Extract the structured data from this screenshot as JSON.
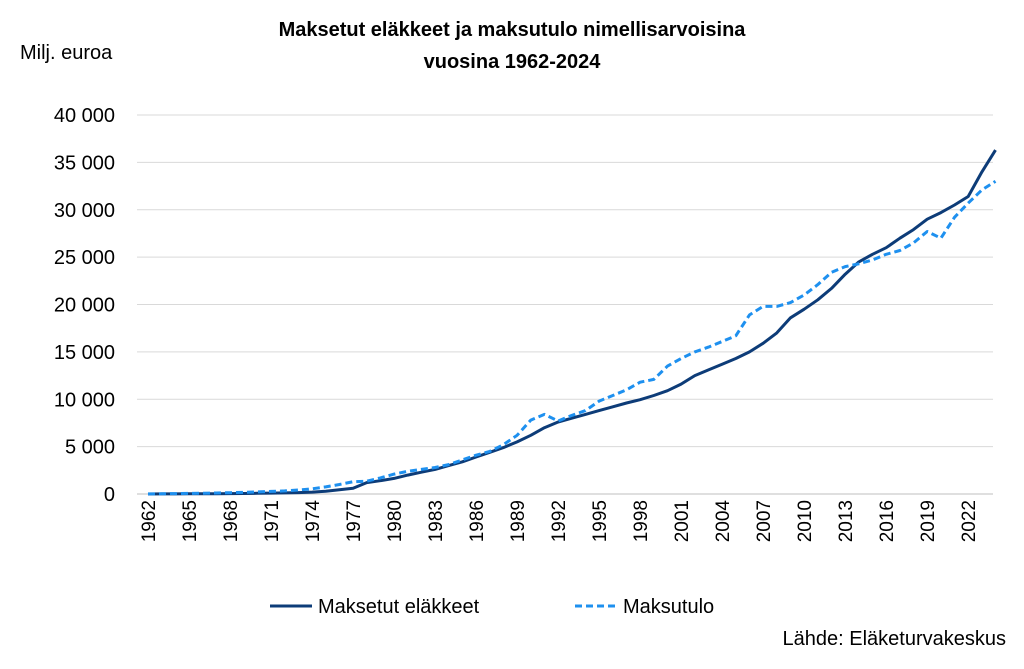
{
  "title_line1": "Maksetut eläkkeet ja maksutulo nimellisarvoisina",
  "title_line2": "vuosina 1962-2024",
  "unit_label": "Milj. euroa",
  "source": "Lähde: Eläketurvakeskus",
  "chart_data": {
    "type": "line",
    "title": "Maksetut eläkkeet ja maksutulo nimellisarvoisina vuosina 1962-2024",
    "ylabel": "Milj. euroa",
    "xlabel": "",
    "ylim": [
      0,
      40000
    ],
    "xlim": [
      1962,
      2024
    ],
    "y_ticks": [
      "0",
      "5 000",
      "10 000",
      "15 000",
      "20 000",
      "25 000",
      "30 000",
      "35 000",
      "40 000"
    ],
    "y_tick_values": [
      0,
      5000,
      10000,
      15000,
      20000,
      25000,
      30000,
      35000,
      40000
    ],
    "x_ticks": [
      "1962",
      "1965",
      "1968",
      "1971",
      "1974",
      "1977",
      "1980",
      "1983",
      "1986",
      "1989",
      "1992",
      "1995",
      "1998",
      "2001",
      "2004",
      "2007",
      "2010",
      "2013",
      "2016",
      "2019",
      "2022"
    ],
    "grid": true,
    "legend_position": "bottom",
    "x": [
      1962,
      1963,
      1964,
      1965,
      1966,
      1967,
      1968,
      1969,
      1970,
      1971,
      1972,
      1973,
      1974,
      1975,
      1976,
      1977,
      1978,
      1979,
      1980,
      1981,
      1982,
      1983,
      1984,
      1985,
      1986,
      1987,
      1988,
      1989,
      1990,
      1991,
      1992,
      1993,
      1994,
      1995,
      1996,
      1997,
      1998,
      1999,
      2000,
      2001,
      2002,
      2003,
      2004,
      2005,
      2006,
      2007,
      2008,
      2009,
      2010,
      2011,
      2012,
      2013,
      2014,
      2015,
      2016,
      2017,
      2018,
      2019,
      2020,
      2021,
      2022,
      2023,
      2024
    ],
    "series": [
      {
        "name": "Maksetut eläkkeet",
        "color": "#0d3c78",
        "style": "solid",
        "values": [
          5,
          10,
          15,
          20,
          25,
          35,
          45,
          55,
          70,
          90,
          120,
          150,
          200,
          300,
          450,
          600,
          1200,
          1400,
          1650,
          2000,
          2300,
          2600,
          3000,
          3400,
          3900,
          4400,
          4900,
          5500,
          6200,
          7000,
          7600,
          8000,
          8400,
          8800,
          9200,
          9600,
          9950,
          10400,
          10900,
          11600,
          12500,
          13100,
          13700,
          14300,
          15000,
          15900,
          17000,
          18600,
          19500,
          20500,
          21700,
          23200,
          24500,
          25300,
          26000,
          27000,
          27900,
          29000,
          29700,
          30500,
          31400,
          34000,
          36300
        ]
      },
      {
        "name": "Maksutulo",
        "color": "#1e90ef",
        "style": "dashed",
        "values": [
          10,
          20,
          40,
          60,
          80,
          110,
          140,
          180,
          220,
          270,
          330,
          420,
          550,
          750,
          1000,
          1300,
          1350,
          1700,
          2100,
          2400,
          2600,
          2800,
          3100,
          3600,
          4100,
          4500,
          5200,
          6200,
          7800,
          8400,
          7700,
          8300,
          8800,
          9800,
          10400,
          11000,
          11800,
          12100,
          13500,
          14300,
          15000,
          15500,
          16100,
          16700,
          18900,
          19800,
          19800,
          20200,
          21000,
          22100,
          23400,
          24000,
          24300,
          24700,
          25300,
          25700,
          26500,
          27700,
          27000,
          29200,
          30700,
          32100,
          33000
        ]
      }
    ]
  }
}
